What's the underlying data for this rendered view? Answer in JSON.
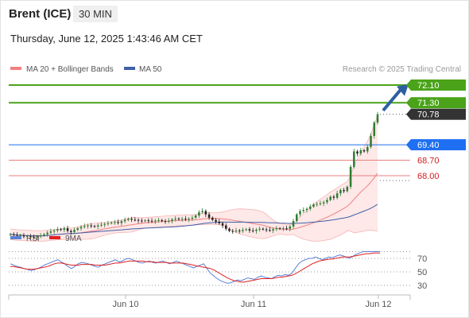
{
  "header": {
    "instrument": "Brent (ICE)",
    "timeframe": "30 MIN",
    "datetime": "Thursday, June 12, 2025 1:43:46 AM CET",
    "credit": "Research © 2025 Trading Central"
  },
  "colors": {
    "candle_up": "#2e7d32",
    "candle_down": "#222222",
    "ma20": "#f08080",
    "band_fill": "#fde0e0",
    "ma50": "#3f5fa8",
    "support": "#e98080",
    "resistance": "#4aa319",
    "pivot": "#1e6ff1",
    "last": "#333333",
    "arrow": "#2c5fa0",
    "rsi": "#5b7fd6",
    "rsi_ma": "#e02020"
  },
  "chart_data": [
    {
      "type": "candlestick",
      "legend": [
        {
          "label": "MA 20 + Bollinger Bands",
          "color": "#f08080"
        },
        {
          "label": "MA 50",
          "color": "#3f5fa8"
        }
      ],
      "x_ticks": [
        "Jun 10",
        "Jun 11",
        "Jun 12"
      ],
      "levels": [
        {
          "label": "72.10",
          "value": 72.1,
          "kind": "resistance"
        },
        {
          "label": "71.30",
          "value": 71.3,
          "kind": "resistance"
        },
        {
          "label": "70.78",
          "value": 70.78,
          "kind": "last"
        },
        {
          "label": "69.40",
          "value": 69.4,
          "kind": "pivot"
        },
        {
          "label": "68.70",
          "value": 68.7,
          "kind": "support"
        },
        {
          "label": "68.00",
          "value": 68.0,
          "kind": "support"
        }
      ],
      "forecast": {
        "direction": "up",
        "target": 72.1
      },
      "series_close": [
        65.35,
        65.32,
        65.28,
        65.3,
        65.25,
        65.27,
        65.22,
        65.2,
        65.26,
        65.3,
        65.35,
        65.42,
        65.48,
        65.52,
        65.58,
        65.55,
        65.62,
        65.5,
        65.45,
        65.55,
        65.62,
        65.68,
        65.72,
        65.75,
        65.72,
        65.7,
        65.75,
        65.78,
        65.82,
        65.85,
        65.88,
        65.9,
        65.86,
        65.94,
        66.0,
        66.05,
        66.01,
        66.0,
        65.97,
        65.95,
        65.98,
        65.96,
        65.93,
        65.97,
        65.99,
        65.95,
        65.92,
        65.96,
        66.02,
        66.06,
        66.03,
        66.05,
        66.02,
        66.05,
        66.1,
        66.2,
        66.35,
        66.4,
        66.25,
        66.1,
        66.0,
        65.92,
        65.85,
        65.75,
        65.6,
        65.5,
        65.48,
        65.52,
        65.5,
        65.55,
        65.58,
        65.52,
        65.5,
        65.56,
        65.6,
        65.57,
        65.55,
        65.52,
        65.58,
        65.62,
        65.6,
        65.62,
        65.6,
        65.7,
        65.95,
        66.25,
        66.4,
        66.45,
        66.5,
        66.6,
        66.7,
        66.72,
        66.75,
        66.8,
        66.9,
        67.05,
        67.0,
        67.2,
        67.35,
        67.3,
        67.5,
        68.4,
        69.1,
        69.0,
        69.15,
        69.1,
        69.3,
        69.8,
        70.4,
        70.78
      ]
    },
    {
      "type": "line",
      "legend": [
        {
          "label": "RSI",
          "color": "#5b7fd6"
        },
        {
          "label": "9MA",
          "color": "#e02020"
        }
      ],
      "y_ticks": [
        70,
        50,
        30
      ],
      "ylim": [
        20,
        80
      ],
      "rsi": [
        62,
        60,
        58,
        57,
        55,
        54,
        52,
        53,
        55,
        57,
        60,
        62,
        64,
        66,
        68,
        65,
        62,
        58,
        55,
        58,
        62,
        64,
        63,
        62,
        60,
        58,
        57,
        60,
        62,
        64,
        66,
        68,
        65,
        66,
        69,
        70,
        68,
        66,
        64,
        63,
        65,
        66,
        64,
        63,
        65,
        66,
        64,
        62,
        64,
        66,
        64,
        62,
        60,
        58,
        56,
        58,
        60,
        62,
        55,
        48,
        44,
        40,
        37,
        35,
        33,
        34,
        36,
        38,
        37,
        39,
        41,
        40,
        39,
        42,
        44,
        42,
        41,
        40,
        43,
        45,
        44,
        46,
        45,
        48,
        55,
        62,
        66,
        68,
        70,
        70,
        72,
        70,
        68,
        70,
        72,
        71,
        73,
        75,
        74,
        72,
        70,
        73,
        76,
        78,
        80,
        80,
        80,
        80,
        80,
        80
      ],
      "rsi_ma": [
        58,
        58,
        57,
        56,
        55,
        54,
        54,
        54,
        55,
        56,
        57,
        58,
        60,
        62,
        63,
        63,
        62,
        61,
        60,
        60,
        60,
        61,
        61,
        61,
        61,
        60,
        60,
        60,
        60,
        61,
        62,
        63,
        63,
        64,
        65,
        66,
        66,
        66,
        66,
        66,
        65,
        65,
        65,
        64,
        64,
        64,
        64,
        63,
        63,
        63,
        63,
        63,
        62,
        61,
        60,
        59,
        58,
        57,
        56,
        55,
        53,
        50,
        47,
        44,
        41,
        39,
        37,
        36,
        35,
        35,
        36,
        37,
        38,
        39,
        40,
        40,
        40,
        40,
        41,
        42,
        42,
        43,
        44,
        45,
        47,
        50,
        53,
        56,
        59,
        62,
        64,
        66,
        67,
        68,
        69,
        69,
        70,
        71,
        72,
        72,
        72,
        73,
        74,
        75,
        76,
        77,
        77,
        78,
        78,
        78
      ]
    }
  ]
}
